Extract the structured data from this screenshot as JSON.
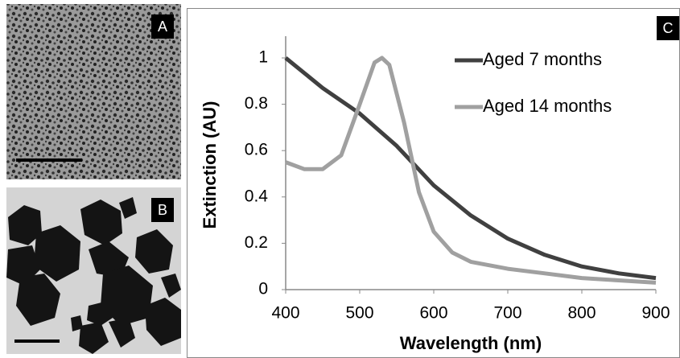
{
  "panel_labels": [
    "A",
    "B",
    "C"
  ],
  "chart_data": {
    "type": "line",
    "xlabel": "Wavelength (nm)",
    "ylabel": "Extinction (AU)",
    "xlim": [
      400,
      900
    ],
    "xticks": [
      400,
      500,
      600,
      700,
      800,
      900
    ],
    "ylim": [
      0,
      1
    ],
    "yticks": [
      0,
      0.2,
      0.4,
      0.6,
      0.8,
      1
    ],
    "grid": false,
    "legend": "upper right",
    "series": [
      {
        "name": "Aged 7 months",
        "color": "#404040",
        "x": [
          400,
          450,
          500,
          550,
          600,
          650,
          700,
          750,
          800,
          850,
          900
        ],
        "values": [
          1,
          0.87,
          0.76,
          0.62,
          0.45,
          0.32,
          0.22,
          0.15,
          0.1,
          0.07,
          0.05
        ]
      },
      {
        "name": "Aged 14 months",
        "color": "#a0a0a0",
        "x": [
          400,
          425,
          450,
          475,
          500,
          520,
          530,
          540,
          560,
          580,
          600,
          625,
          650,
          700,
          750,
          800,
          850,
          900
        ],
        "values": [
          0.55,
          0.52,
          0.52,
          0.58,
          0.8,
          0.98,
          1,
          0.97,
          0.72,
          0.42,
          0.25,
          0.16,
          0.12,
          0.09,
          0.07,
          0.05,
          0.04,
          0.03
        ]
      }
    ]
  }
}
